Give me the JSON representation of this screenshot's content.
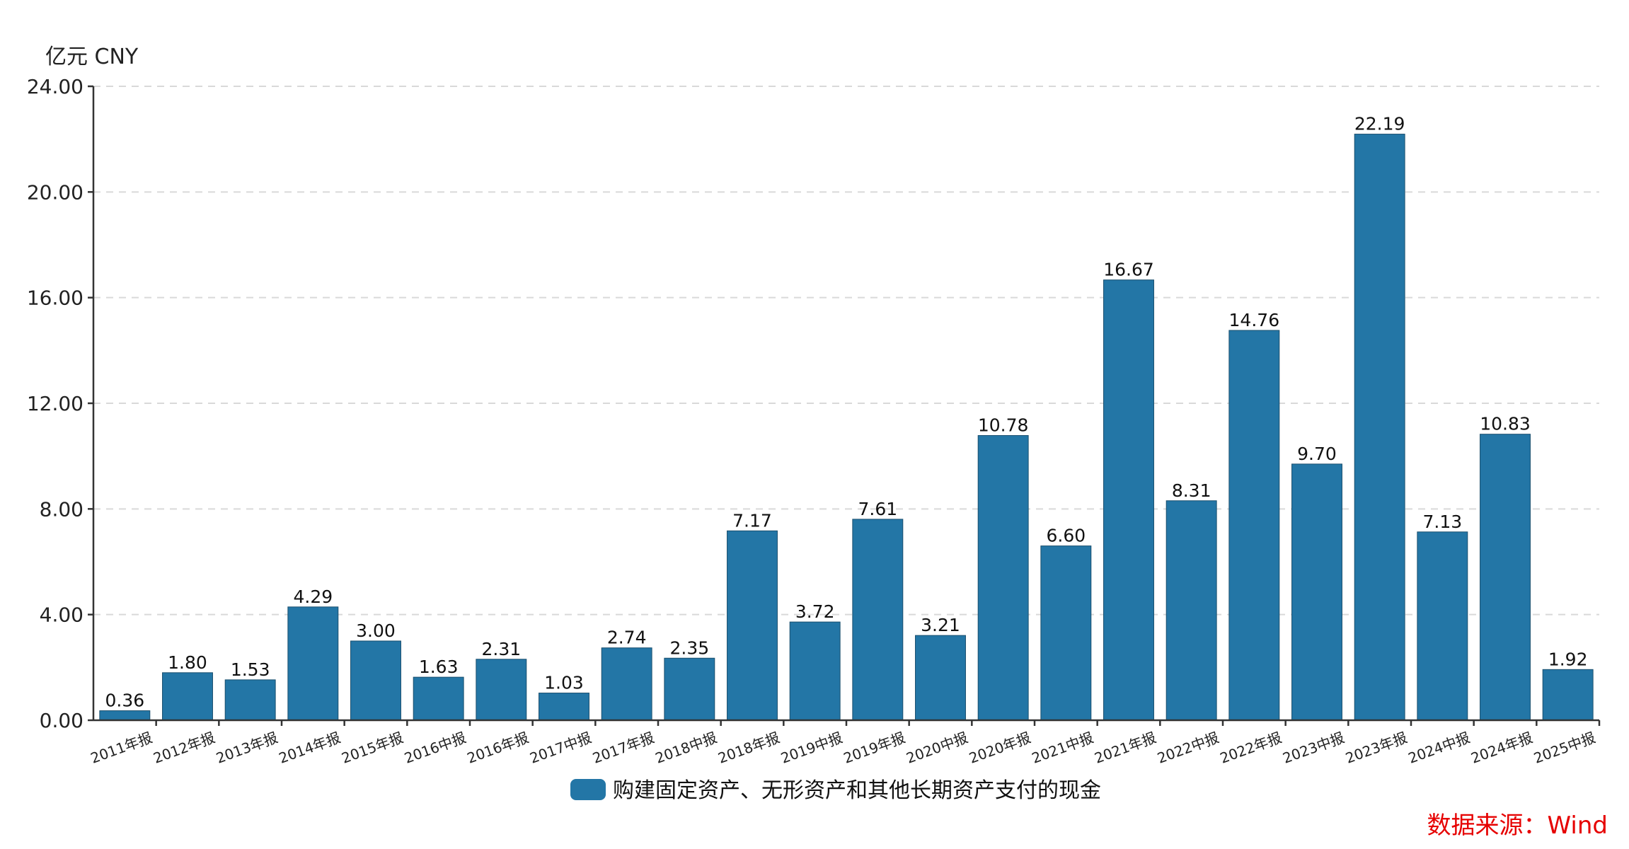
{
  "chart_data": {
    "type": "bar",
    "y_unit_label": "亿元  CNY",
    "ylim": [
      0,
      24
    ],
    "yticks": [
      "0.00",
      "4.00",
      "8.00",
      "12.00",
      "16.00",
      "20.00",
      "24.00"
    ],
    "grid": true,
    "legend_position": "bottom-center",
    "series": [
      {
        "name": "购建固定资产、无形资产和其他长期资产支付的现金",
        "color": "#2376a6",
        "values": [
          0.36,
          1.8,
          1.53,
          4.29,
          3.0,
          1.63,
          2.31,
          1.03,
          2.74,
          2.35,
          7.17,
          3.72,
          7.61,
          3.21,
          10.78,
          6.6,
          16.67,
          8.31,
          14.76,
          9.7,
          22.19,
          7.13,
          10.83,
          1.92
        ],
        "labels": [
          "0.36",
          "1.80",
          "1.53",
          "4.29",
          "3.00",
          "1.63",
          "2.31",
          "1.03",
          "2.74",
          "2.35",
          "7.17",
          "3.72",
          "7.61",
          "3.21",
          "10.78",
          "6.60",
          "16.67",
          "8.31",
          "14.76",
          "9.70",
          "22.19",
          "7.13",
          "10.83",
          "1.92"
        ]
      }
    ],
    "categories": [
      "2011年报",
      "2012年报",
      "2013年报",
      "2014年报",
      "2015年报",
      "2016中报",
      "2016年报",
      "2017中报",
      "2017年报",
      "2018中报",
      "2018年报",
      "2019中报",
      "2019年报",
      "2020中报",
      "2020年报",
      "2021中报",
      "2021年报",
      "2022中报",
      "2022年报",
      "2023中报",
      "2023年报",
      "2024中报",
      "2024年报",
      "2025中报"
    ]
  },
  "source": "数据来源：Wind"
}
